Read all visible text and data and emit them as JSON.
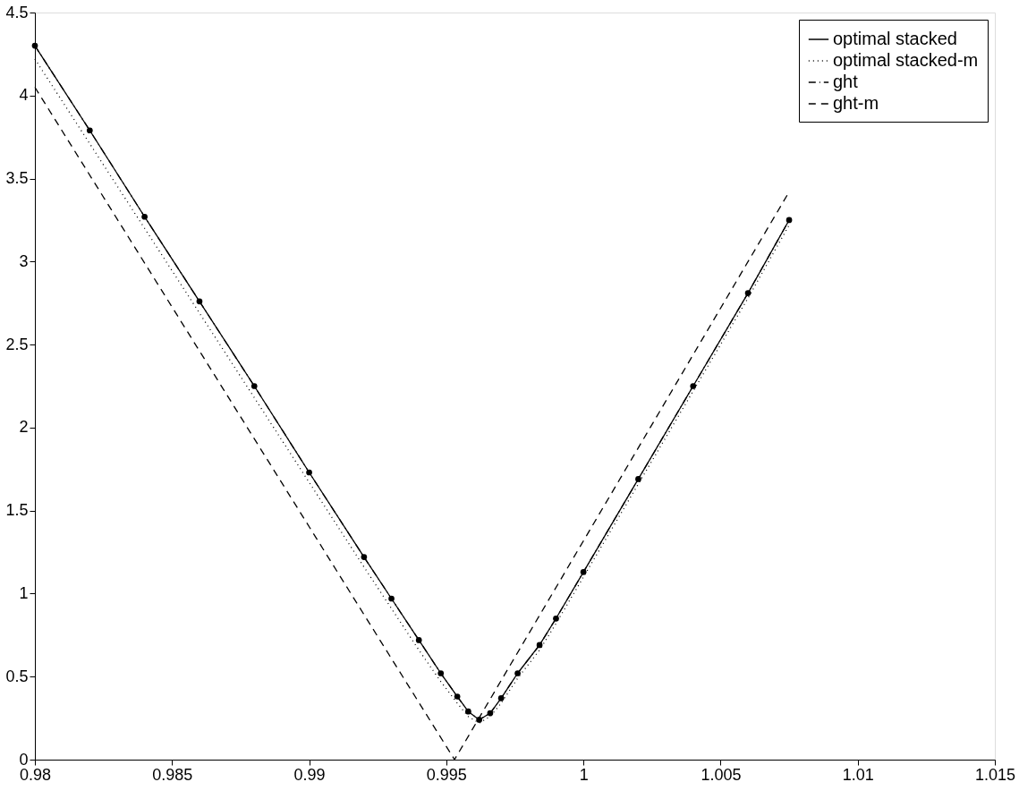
{
  "chart_data": {
    "type": "line",
    "xlim": [
      0.98,
      1.015
    ],
    "ylim": [
      0,
      4.5
    ],
    "xticks": [
      0.98,
      0.985,
      0.99,
      0.995,
      1,
      1.005,
      1.01,
      1.015
    ],
    "yticks": [
      0,
      0.5,
      1,
      1.5,
      2,
      2.5,
      3,
      3.5,
      4,
      4.5
    ],
    "grid": false,
    "legend": "top right",
    "series": [
      {
        "name": "optimal stacked",
        "color": "#000000",
        "marker": "circle",
        "line_style": "solid",
        "x": [
          0.98,
          0.982,
          0.984,
          0.986,
          0.988,
          0.99,
          0.992,
          0.993,
          0.994,
          0.9948,
          0.9954,
          0.9958,
          0.9962,
          0.9966,
          0.997,
          0.9976,
          0.9984,
          0.999,
          1.0,
          1.002,
          1.004,
          1.006,
          1.0075
        ],
        "values": [
          4.3,
          3.79,
          3.27,
          2.76,
          2.25,
          1.73,
          1.22,
          0.97,
          0.72,
          0.52,
          0.38,
          0.29,
          0.24,
          0.28,
          0.37,
          0.52,
          0.69,
          0.85,
          1.13,
          1.69,
          2.25,
          2.81,
          3.25
        ]
      },
      {
        "name": "optimal stacked-m",
        "color": "#000000",
        "line_style": "dotted",
        "x": [
          0.98,
          0.982,
          0.984,
          0.986,
          0.988,
          0.99,
          0.992,
          0.993,
          0.994,
          0.9948,
          0.9954,
          0.9958,
          0.9962,
          0.9966,
          0.997,
          0.9976,
          0.9984,
          0.999,
          1.0,
          1.002,
          1.004,
          1.006,
          1.0075
        ],
        "values": [
          4.22,
          3.71,
          3.2,
          2.69,
          2.18,
          1.67,
          1.16,
          0.91,
          0.66,
          0.47,
          0.34,
          0.26,
          0.22,
          0.26,
          0.34,
          0.49,
          0.66,
          0.82,
          1.1,
          1.66,
          2.22,
          2.78,
          3.22
        ]
      },
      {
        "name": "ght",
        "color": "#000000",
        "line_style": "dashdot",
        "x": [
          0.98,
          0.982,
          0.984,
          0.986,
          0.988,
          0.99,
          0.992,
          0.993,
          0.994,
          0.9948,
          0.9954,
          0.9958,
          0.9962,
          0.9966,
          0.997,
          0.9976,
          0.9984,
          0.999,
          1.0,
          1.002,
          1.004,
          1.006,
          1.0075
        ],
        "values": [
          4.3,
          3.79,
          3.27,
          2.76,
          2.25,
          1.73,
          1.22,
          0.97,
          0.72,
          0.52,
          0.38,
          0.29,
          0.24,
          0.28,
          0.37,
          0.52,
          0.69,
          0.85,
          1.13,
          1.69,
          2.25,
          2.81,
          3.25
        ]
      },
      {
        "name": "ght-m",
        "color": "#000000",
        "line_style": "dashed",
        "x": [
          0.98,
          0.9953,
          1.0075
        ],
        "values": [
          4.05,
          0,
          3.42
        ]
      }
    ]
  }
}
